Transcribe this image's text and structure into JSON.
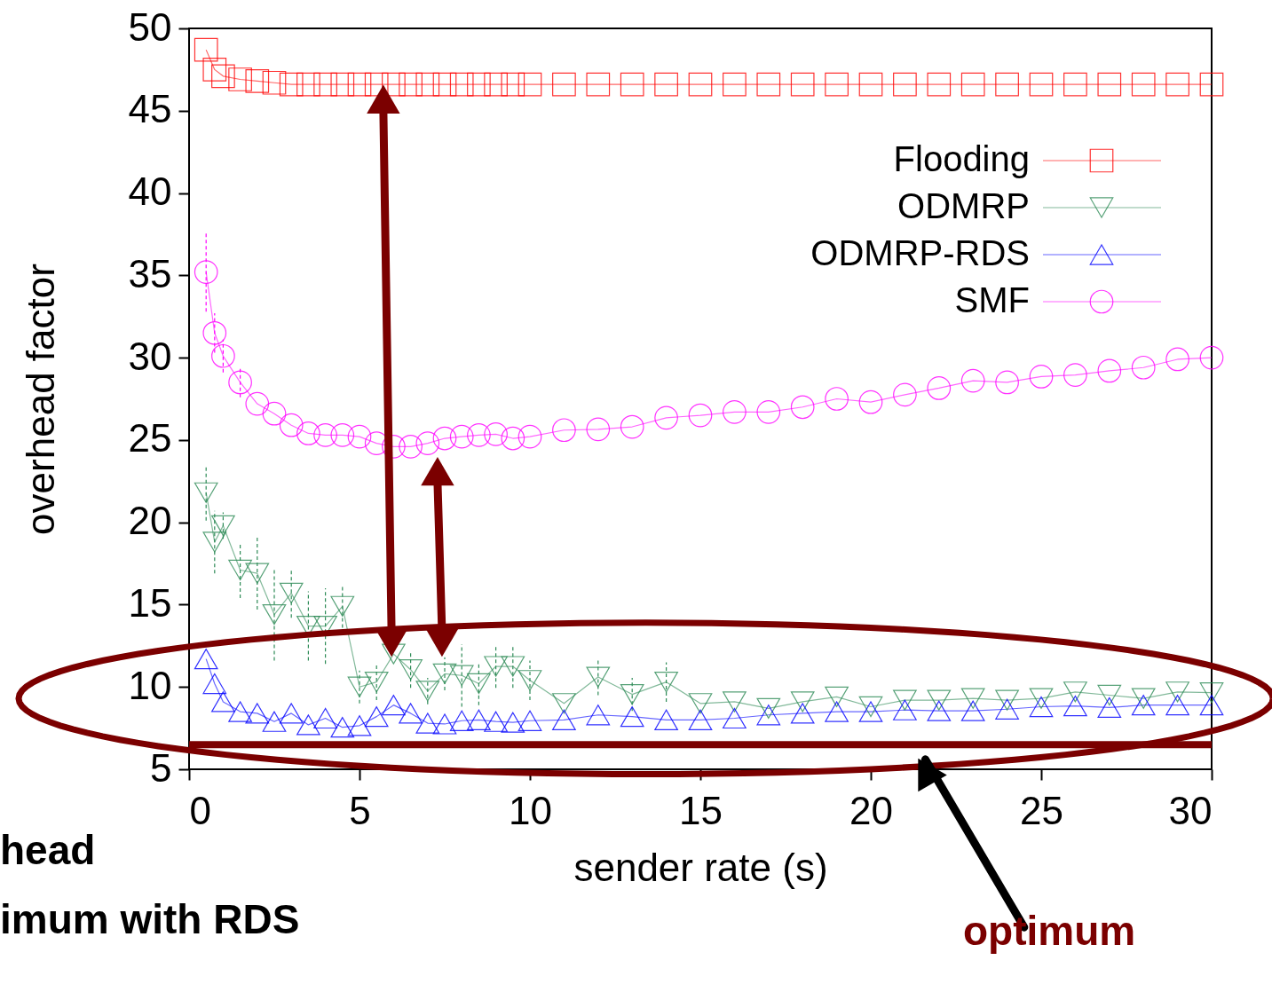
{
  "chart_data": {
    "type": "line",
    "xlabel": "sender rate (s)",
    "ylabel": "overhead factor",
    "x": [
      0.5,
      0.75,
      1,
      1.5,
      2,
      2.5,
      3,
      3.5,
      4,
      4.5,
      5,
      5.5,
      6,
      6.5,
      7,
      7.5,
      8,
      8.5,
      9,
      9.5,
      10,
      11,
      12,
      13,
      14,
      15,
      16,
      17,
      18,
      19,
      20,
      21,
      22,
      23,
      24,
      25,
      26,
      27,
      28,
      29,
      30
    ],
    "series": [
      {
        "name": "Flooding",
        "color": "#ff0000",
        "marker": "square",
        "values": [
          48.7,
          47.5,
          47.1,
          46.9,
          46.8,
          46.7,
          46.6,
          46.6,
          46.6,
          46.6,
          46.6,
          46.6,
          46.6,
          46.6,
          46.6,
          46.6,
          46.6,
          46.6,
          46.6,
          46.6,
          46.6,
          46.6,
          46.6,
          46.6,
          46.6,
          46.6,
          46.6,
          46.6,
          46.6,
          46.6,
          46.6,
          46.6,
          46.6,
          46.6,
          46.6,
          46.6,
          46.6,
          46.6,
          46.6,
          46.6,
          46.6
        ]
      },
      {
        "name": "ODMRP",
        "color": "#2e8b57",
        "marker": "triangle-down",
        "values": [
          21.8,
          18.8,
          19.8,
          17.1,
          16.9,
          14.4,
          15.7,
          13.7,
          13.7,
          14.9,
          10.0,
          10.3,
          12.0,
          11.05,
          9.75,
          10.8,
          10.7,
          10.2,
          11.25,
          11.25,
          10.4,
          9.0,
          10.6,
          9.55,
          10.3,
          9.0,
          9.1,
          8.7,
          9.1,
          9.4,
          8.8,
          9.2,
          9.2,
          9.3,
          9.2,
          9.3,
          9.7,
          9.5,
          9.3,
          9.7,
          9.65
        ],
        "errors": [
          1.7,
          1.9,
          0.8,
          1.7,
          2.2,
          2.8,
          1.5,
          2.1,
          2.3,
          1.3,
          1.0,
          1.1,
          null,
          1.1,
          0.8,
          1.0,
          1.9,
          1.3,
          1.3,
          1.3,
          1.2,
          null,
          1.1,
          1.0,
          1.2,
          null,
          null,
          null,
          null,
          null,
          null,
          null,
          null,
          null,
          null,
          null,
          null,
          null,
          null,
          null,
          null
        ]
      },
      {
        "name": "ODMRP-RDS",
        "color": "#0000ff",
        "marker": "triangle",
        "values": [
          11.7,
          10.2,
          9.1,
          8.5,
          8.4,
          7.9,
          8.4,
          7.7,
          8.1,
          7.55,
          7.65,
          8.2,
          8.9,
          8.4,
          7.8,
          7.75,
          7.95,
          8.0,
          7.9,
          7.85,
          7.95,
          8.0,
          8.3,
          8.2,
          8.0,
          8.0,
          8.1,
          8.3,
          8.4,
          8.5,
          8.5,
          8.6,
          8.55,
          8.55,
          8.65,
          8.8,
          8.85,
          8.75,
          8.9,
          8.9,
          8.9
        ]
      },
      {
        "name": "SMF",
        "color": "#ff00ff",
        "marker": "circle",
        "values": [
          35.2,
          31.5,
          30.1,
          28.5,
          27.2,
          26.6,
          25.9,
          25.4,
          25.3,
          25.3,
          25.2,
          24.8,
          24.6,
          24.6,
          24.8,
          25.1,
          25.2,
          25.3,
          25.35,
          25.1,
          25.2,
          25.6,
          25.65,
          25.8,
          26.35,
          26.5,
          26.7,
          26.7,
          27.0,
          27.5,
          27.3,
          27.75,
          28.15,
          28.6,
          28.5,
          28.85,
          28.95,
          29.2,
          29.4,
          29.9,
          30.0
        ],
        "errors": [
          2.4,
          1.2,
          1.0,
          0.9,
          null,
          null,
          null,
          null,
          null,
          null,
          null,
          null,
          null,
          null,
          null,
          null,
          null,
          null,
          null,
          null,
          null,
          null,
          null,
          null,
          null,
          null,
          null,
          null,
          null,
          null,
          null,
          null,
          null,
          null,
          null,
          null,
          null,
          null,
          null,
          null,
          null
        ]
      }
    ],
    "xlim": [
      0,
      30
    ],
    "xticks": [
      0,
      5,
      10,
      15,
      20,
      25,
      30
    ],
    "ylim": [
      5,
      50
    ],
    "yticks": [
      5,
      10,
      15,
      20,
      25,
      30,
      35,
      40,
      45,
      50
    ],
    "grid": false,
    "legend": "top right",
    "line_style": "solid",
    "ref_lines": [
      {
        "axis": "y",
        "value": 6.5,
        "color": "#7b0000"
      }
    ],
    "annotations": [
      "head",
      "imum with RDS",
      "optimum"
    ]
  }
}
